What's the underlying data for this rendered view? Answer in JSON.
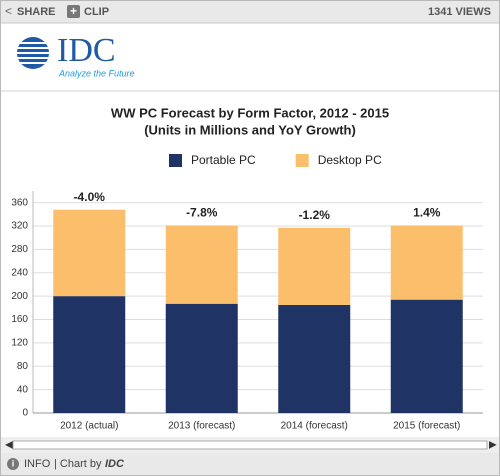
{
  "toolbar": {
    "share": "SHARE",
    "clip": "CLIP",
    "views": "1341 VIEWS"
  },
  "logo": {
    "name": "IDC",
    "tagline": "Analyze the Future"
  },
  "chart_data": {
    "type": "bar",
    "stacked": true,
    "title": "WW PC Forecast by Form Factor, 2012 - 2015",
    "subtitle": "(Units in Millions and YoY Growth)",
    "categories": [
      "2012 (actual)",
      "2013 (forecast)",
      "2014 (forecast)",
      "2015 (forecast)"
    ],
    "series": [
      {
        "name": "Portable PC",
        "color": "#1f3364",
        "values": [
          200,
          187,
          185,
          194
        ]
      },
      {
        "name": "Desktop PC",
        "color": "#fbbf6c",
        "values": [
          148,
          134,
          132,
          127
        ]
      }
    ],
    "annotations": [
      "-4.0%",
      "-7.8%",
      "-1.2%",
      "1.4%"
    ],
    "ylim": [
      0,
      380
    ],
    "yticks": [
      0,
      40,
      80,
      120,
      160,
      200,
      240,
      280,
      320,
      360
    ],
    "grid": true,
    "legend": "top"
  },
  "footer": {
    "info": "INFO",
    "credit": "| Chart by",
    "brand": "IDC"
  }
}
